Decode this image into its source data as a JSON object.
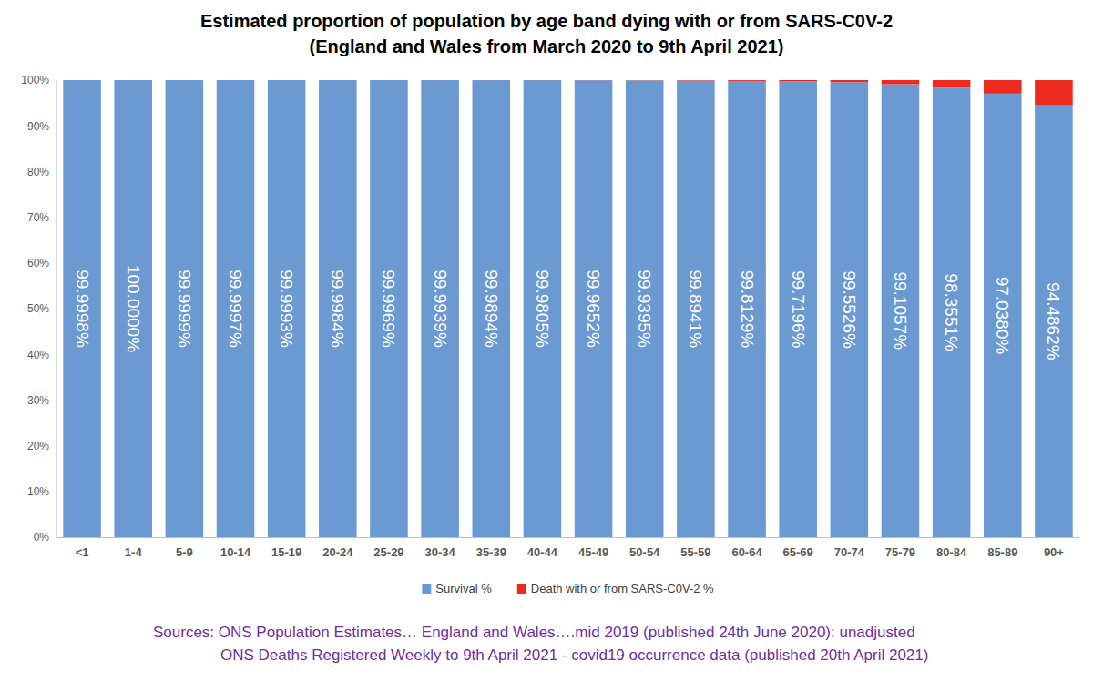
{
  "chart_data": {
    "type": "bar",
    "title": "Estimated proportion of population by age band dying with or from SARS-C0V-2",
    "subtitle": "(England and Wales from March 2020 to 9th April 2021)",
    "annotations": [
      "Sources:  ONS Population Estimates… England and Wales….mid 2019 (published 24th June 2020): unadjusted",
      "ONS Deaths Registered Weekly to 9th April 2021 - covid19 occurrence data (published 20th April 2021)"
    ],
    "categories": [
      "<1",
      "1-4",
      "5-9",
      "10-14",
      "15-19",
      "20-24",
      "25-29",
      "30-34",
      "35-39",
      "40-44",
      "45-49",
      "50-54",
      "55-59",
      "60-64",
      "65-69",
      "70-74",
      "75-79",
      "80-84",
      "85-89",
      "90+"
    ],
    "series": [
      {
        "name": "Survival %",
        "color": "#6a9ad1",
        "values": [
          99.9998,
          100.0,
          99.9999,
          99.9997,
          99.9993,
          99.9984,
          99.9969,
          99.9939,
          99.9894,
          99.9805,
          99.9652,
          99.9395,
          99.8941,
          99.8129,
          99.7196,
          99.5526,
          99.1057,
          98.3551,
          97.038,
          94.4862
        ],
        "value_labels": [
          "99.9998%",
          "100.0000%",
          "99.9999%",
          "99.9997%",
          "99.9993%",
          "99.9984%",
          "99.9969%",
          "99.9939%",
          "99.9894%",
          "99.9805%",
          "99.9652%",
          "99.9395%",
          "99.8941%",
          "99.8129%",
          "99.7196%",
          "99.5526%",
          "99.1057%",
          "98.3551%",
          "97.0380%",
          "94.4862%"
        ]
      },
      {
        "name": "Death with or from SARS-C0V-2 %",
        "color": "#ec2b1e",
        "values": [
          0.0002,
          0.0,
          0.0001,
          0.0003,
          0.0007,
          0.0016,
          0.0031,
          0.0061,
          0.0106,
          0.0195,
          0.0348,
          0.0605,
          0.1059,
          0.1871,
          0.2804,
          0.4474,
          0.8943,
          1.6449,
          2.962,
          5.5138
        ]
      }
    ],
    "stacked": true,
    "data_labels": true,
    "grid": false,
    "legend": "bottom",
    "ylim": [
      0,
      100
    ],
    "yticks": [
      {
        "value": 0,
        "label": "0%"
      },
      {
        "value": 10,
        "label": "10%"
      },
      {
        "value": 20,
        "label": "20%"
      },
      {
        "value": 30,
        "label": "30%"
      },
      {
        "value": 40,
        "label": "40%"
      },
      {
        "value": 50,
        "label": "50%"
      },
      {
        "value": 60,
        "label": "60%"
      },
      {
        "value": 70,
        "label": "70%"
      },
      {
        "value": 80,
        "label": "80%"
      },
      {
        "value": 90,
        "label": "90%"
      },
      {
        "value": 100,
        "label": "100%"
      }
    ]
  }
}
